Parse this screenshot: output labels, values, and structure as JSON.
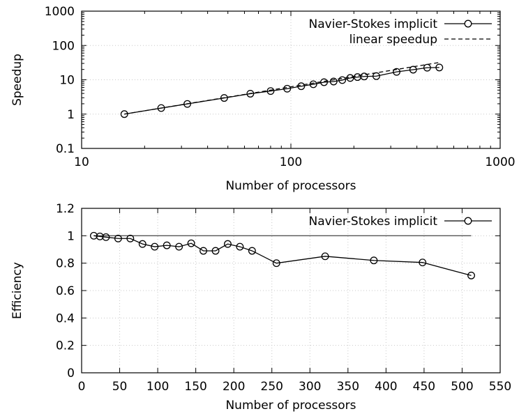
{
  "chart_data": [
    {
      "type": "line",
      "title": "",
      "xlabel": "Number of processors",
      "ylabel": "Speedup",
      "xscale": "log",
      "yscale": "log",
      "xlim": [
        10,
        1000
      ],
      "ylim": [
        0.1,
        1000
      ],
      "x_ticks": [
        10,
        100,
        1000
      ],
      "x_tick_labels": [
        "10",
        "100",
        "1000"
      ],
      "y_ticks": [
        0.1,
        1,
        10,
        100,
        1000
      ],
      "y_tick_labels": [
        "0.1",
        "1",
        "10",
        "100",
        "1000"
      ],
      "grid": true,
      "legend_position": "top-right",
      "series": [
        {
          "name": "Navier-Stokes implicit",
          "style": "solid line with circle markers",
          "color": "#000000",
          "x": [
            16,
            24,
            32,
            48,
            64,
            80,
            96,
            112,
            128,
            144,
            160,
            176,
            192,
            208,
            224,
            256,
            320,
            384,
            448,
            512
          ],
          "y": [
            1.0,
            1.5,
            1.98,
            2.95,
            3.93,
            4.7,
            5.5,
            6.5,
            7.4,
            8.5,
            8.9,
            9.8,
            11.3,
            12.0,
            12.5,
            12.8,
            17.0,
            19.7,
            22.5,
            22.8
          ]
        },
        {
          "name": "linear speedup",
          "style": "dashed line",
          "color": "#000000",
          "x": [
            16,
            512
          ],
          "y": [
            1,
            32
          ]
        }
      ]
    },
    {
      "type": "line",
      "title": "",
      "xlabel": "Number of processors",
      "ylabel": "Efficiency",
      "xlim": [
        0,
        550
      ],
      "ylim": [
        0,
        1.2
      ],
      "x_ticks": [
        0,
        50,
        100,
        150,
        200,
        250,
        300,
        350,
        400,
        450,
        500,
        550
      ],
      "x_tick_labels": [
        "0",
        "50",
        "100",
        "150",
        "200",
        "250",
        "300",
        "350",
        "400",
        "450",
        "500",
        "550"
      ],
      "y_ticks": [
        0,
        0.2,
        0.4,
        0.6,
        0.8,
        1,
        1.2
      ],
      "y_tick_labels": [
        "0",
        "0.2",
        "0.4",
        "0.6",
        "0.8",
        "1",
        "1.2"
      ],
      "grid": true,
      "legend_position": "top-right",
      "reference_line": {
        "y": 1,
        "x": [
          16,
          512
        ]
      },
      "series": [
        {
          "name": "Navier-Stokes implicit",
          "style": "solid line with circle markers",
          "color": "#000000",
          "x": [
            16,
            24,
            32,
            48,
            64,
            80,
            96,
            112,
            128,
            144,
            160,
            176,
            192,
            208,
            224,
            256,
            320,
            384,
            448,
            512
          ],
          "y": [
            1.0,
            0.995,
            0.99,
            0.98,
            0.98,
            0.94,
            0.92,
            0.93,
            0.92,
            0.945,
            0.89,
            0.89,
            0.94,
            0.92,
            0.89,
            0.8,
            0.85,
            0.82,
            0.805,
            0.71
          ]
        }
      ]
    }
  ]
}
